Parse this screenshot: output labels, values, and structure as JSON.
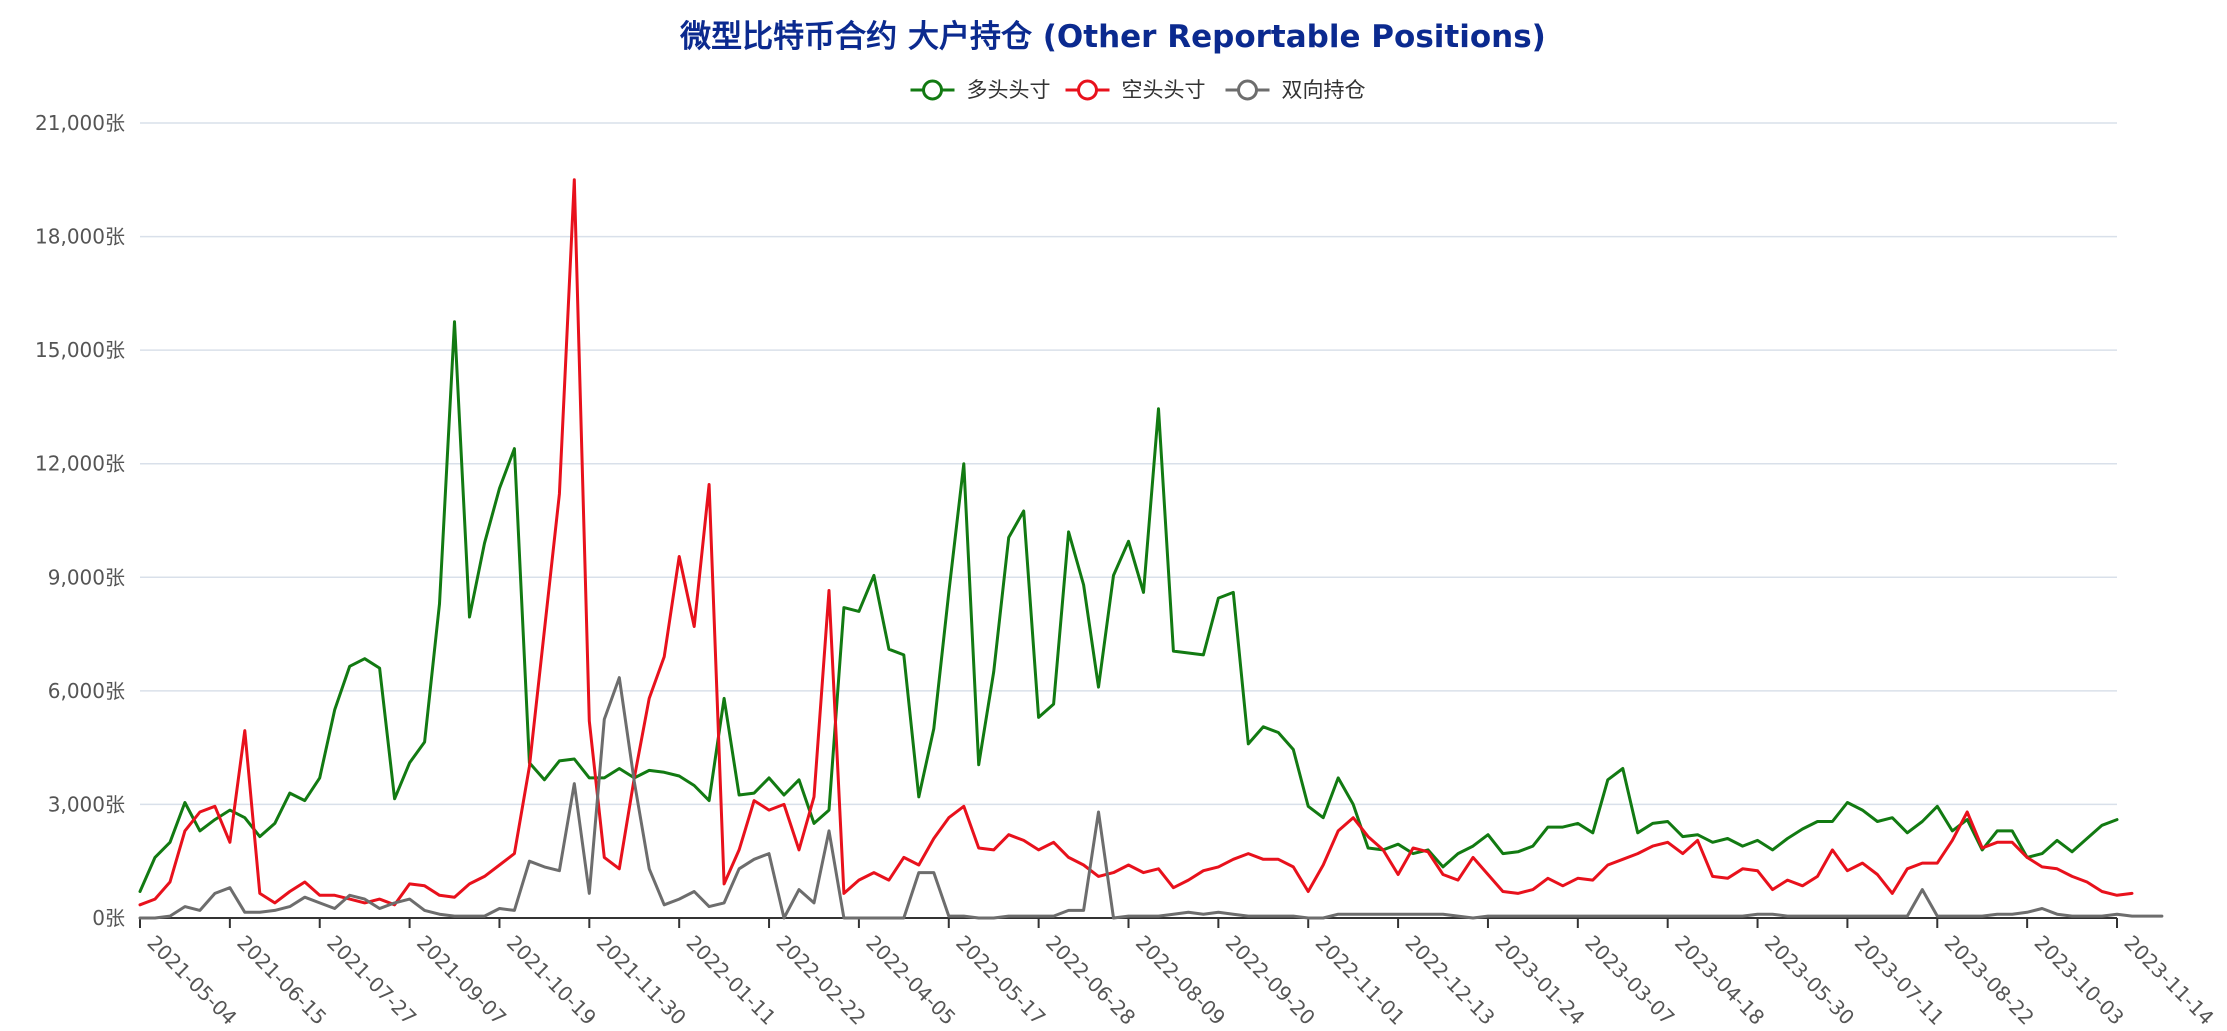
{
  "chart_data": {
    "type": "line",
    "title": "微型比特币合约 大户持仓 (Other Reportable Positions)",
    "xlabel": "",
    "ylabel": "",
    "ylim": [
      0,
      21000
    ],
    "y_ticks": [
      0,
      3000,
      6000,
      9000,
      12000,
      15000,
      18000,
      21000
    ],
    "y_tick_labels": [
      "0张",
      "3,000张",
      "6,000张",
      "9,000张",
      "12,000张",
      "15,000张",
      "18,000张",
      "21,000张"
    ],
    "x_tick_labels": [
      "2021-05-04",
      "2021-06-15",
      "2021-07-27",
      "2021-09-07",
      "2021-10-19",
      "2021-11-30",
      "2022-01-11",
      "2022-02-22",
      "2022-04-05",
      "2022-05-17",
      "2022-06-28",
      "2022-08-09",
      "2022-09-20",
      "2022-11-01",
      "2022-12-13",
      "2023-01-24",
      "2023-03-07",
      "2023-04-18",
      "2023-05-30",
      "2023-07-11",
      "2023-08-22",
      "2023-10-03",
      "2023-11-14"
    ],
    "x_tick_every": 6,
    "grid": true,
    "legend_position": "top-center",
    "series": [
      {
        "name": "多头头寸",
        "color": "#127a12",
        "values": [
          700,
          1600,
          2000,
          3050,
          2300,
          2600,
          2850,
          2650,
          2150,
          2500,
          3300,
          3100,
          3700,
          5500,
          6650,
          6850,
          6600,
          3150,
          4100,
          4650,
          8300,
          15750,
          7950,
          9900,
          11350,
          12400,
          4100,
          3650,
          4150,
          4200,
          3700,
          3700,
          3950,
          3700,
          3900,
          3850,
          3750,
          3500,
          3100,
          5800,
          3250,
          3300,
          3700,
          3250,
          3650,
          2500,
          2850,
          8200,
          8100,
          9050,
          7100,
          6950,
          3200,
          5000,
          8600,
          12000,
          4050,
          6500,
          10050,
          10750,
          5300,
          5650,
          10200,
          8800,
          6100,
          9050,
          9950,
          8600,
          13450,
          7050,
          7000,
          6950,
          8450,
          8600,
          4600,
          5050,
          4900,
          4450,
          2950,
          2650,
          3700,
          3000,
          1850,
          1800,
          1950,
          1700,
          1800,
          1350,
          1700,
          1900,
          2200,
          1700,
          1750,
          1900,
          2400,
          2400,
          2500,
          2250,
          3650,
          3950,
          2250,
          2500,
          2550,
          2150,
          2200,
          2000,
          2100,
          1900,
          2050,
          1800,
          2100,
          2350,
          2550,
          2550,
          3050,
          2850,
          2550,
          2650,
          2250,
          2550,
          2950,
          2300,
          2600,
          1800,
          2300,
          2300,
          1600,
          1700,
          2050,
          1750,
          2100,
          2450,
          2600
        ]
      },
      {
        "name": "空头头寸",
        "color": "#e8111c",
        "values": [
          350,
          500,
          950,
          2300,
          2800,
          2950,
          2000,
          4950,
          650,
          400,
          700,
          950,
          600,
          600,
          500,
          400,
          500,
          350,
          900,
          850,
          600,
          550,
          900,
          1100,
          1400,
          1700,
          4000,
          7600,
          11200,
          19500,
          5200,
          1600,
          1300,
          3700,
          5800,
          6900,
          9550,
          7700,
          11450,
          900,
          1800,
          3100,
          2850,
          3000,
          1800,
          3200,
          8650,
          650,
          1000,
          1200,
          1000,
          1600,
          1400,
          2100,
          2650,
          2950,
          1850,
          1800,
          2200,
          2050,
          1800,
          2000,
          1600,
          1400,
          1100,
          1200,
          1400,
          1200,
          1300,
          800,
          1000,
          1250,
          1350,
          1550,
          1700,
          1550,
          1550,
          1350,
          700,
          1400,
          2300,
          2650,
          2150,
          1800,
          1150,
          1850,
          1750,
          1150,
          1000,
          1600,
          1150,
          700,
          650,
          750,
          1050,
          850,
          1050,
          1000,
          1400,
          1550,
          1700,
          1900,
          2000,
          1700,
          2050,
          1100,
          1050,
          1300,
          1250,
          750,
          1000,
          850,
          1100,
          1800,
          1250,
          1450,
          1150,
          650,
          1300,
          1450,
          1450,
          2050,
          2800,
          1850,
          2000,
          2000,
          1600,
          1350,
          1300,
          1100,
          950,
          700,
          600,
          650
        ]
      },
      {
        "name": "双向持仓",
        "color": "#6d6d6d",
        "values": [
          0,
          0,
          50,
          300,
          200,
          650,
          800,
          150,
          150,
          200,
          300,
          550,
          400,
          250,
          600,
          500,
          250,
          400,
          500,
          200,
          100,
          50,
          50,
          50,
          250,
          200,
          1500,
          1350,
          1250,
          3550,
          650,
          5250,
          6350,
          3600,
          1300,
          350,
          500,
          700,
          300,
          400,
          1300,
          1550,
          1700,
          0,
          750,
          400,
          2300,
          0,
          0,
          0,
          0,
          0,
          1200,
          1200,
          50,
          50,
          0,
          0,
          50,
          50,
          50,
          50,
          200,
          200,
          2800,
          0,
          50,
          50,
          50,
          100,
          150,
          100,
          150,
          100,
          50,
          50,
          50,
          50,
          0,
          0,
          100,
          100,
          100,
          100,
          100,
          100,
          100,
          100,
          50,
          0,
          50,
          50,
          50,
          50,
          50,
          50,
          50,
          50,
          50,
          50,
          50,
          50,
          50,
          50,
          50,
          50,
          50,
          50,
          100,
          100,
          50,
          50,
          50,
          50,
          50,
          50,
          50,
          50,
          50,
          750,
          50,
          50,
          50,
          50,
          100,
          100,
          150,
          250,
          100,
          50,
          50,
          50,
          100,
          50,
          50,
          50
        ]
      }
    ]
  }
}
